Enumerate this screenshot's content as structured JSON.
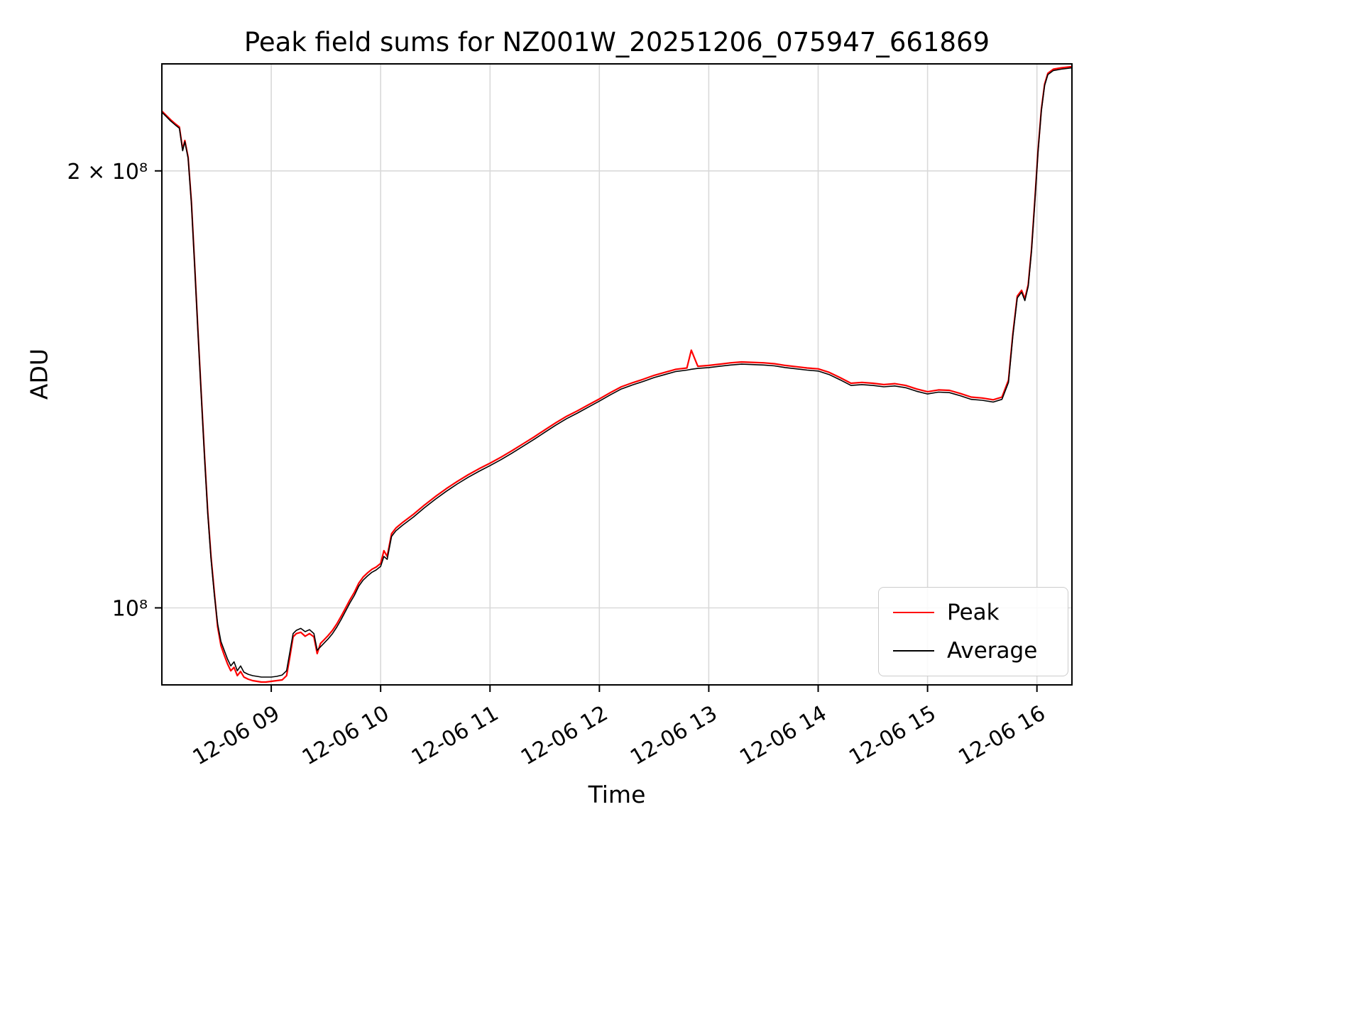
{
  "figure": {
    "background": "#ffffff"
  },
  "chart_data": {
    "type": "line",
    "title": "Peak field sums for NZ001W_20251206_075947_661869",
    "xlabel": "Time",
    "ylabel": "ADU",
    "yscale": "log",
    "grid": true,
    "ylim": [
      88500000.0,
      237000000.0
    ],
    "xlim_hours": [
      8.0,
      16.32
    ],
    "x_unit": "hours on 2025-12-06",
    "legend": {
      "position": "lower right"
    },
    "colors": {
      "grid": "#d9d9d9",
      "axes": "#000000"
    },
    "y_ticks": [
      {
        "value": 200000000.0,
        "label": "2 × 10⁸"
      },
      {
        "value": 100000000.0,
        "label": "10⁸"
      }
    ],
    "x_ticks": [
      {
        "hour": 9,
        "label": "12-06 09"
      },
      {
        "hour": 10,
        "label": "12-06 10"
      },
      {
        "hour": 11,
        "label": "12-06 11"
      },
      {
        "hour": 12,
        "label": "12-06 12"
      },
      {
        "hour": 13,
        "label": "12-06 13"
      },
      {
        "hour": 14,
        "label": "12-06 14"
      },
      {
        "hour": 15,
        "label": "12-06 15"
      },
      {
        "hour": 16,
        "label": "12-06 16"
      }
    ],
    "x": [
      8.0,
      8.04,
      8.08,
      8.12,
      8.16,
      8.19,
      8.21,
      8.24,
      8.27,
      8.3,
      8.33,
      8.36,
      8.39,
      8.42,
      8.45,
      8.48,
      8.51,
      8.54,
      8.57,
      8.6,
      8.63,
      8.66,
      8.69,
      8.72,
      8.75,
      8.79,
      8.83,
      8.87,
      8.91,
      8.95,
      9.0,
      9.05,
      9.1,
      9.14,
      9.17,
      9.2,
      9.23,
      9.27,
      9.31,
      9.35,
      9.39,
      9.42,
      9.45,
      9.48,
      9.52,
      9.56,
      9.6,
      9.64,
      9.68,
      9.72,
      9.76,
      9.8,
      9.84,
      9.88,
      9.92,
      9.96,
      10.0,
      10.03,
      10.06,
      10.1,
      10.14,
      10.2,
      10.3,
      10.4,
      10.5,
      10.6,
      10.7,
      10.8,
      10.9,
      11.0,
      11.1,
      11.2,
      11.3,
      11.4,
      11.5,
      11.6,
      11.7,
      11.8,
      11.9,
      12.0,
      12.1,
      12.2,
      12.3,
      12.4,
      12.5,
      12.6,
      12.7,
      12.8,
      12.84,
      12.9,
      13.0,
      13.1,
      13.2,
      13.3,
      13.4,
      13.5,
      13.6,
      13.7,
      13.8,
      13.9,
      14.0,
      14.1,
      14.2,
      14.3,
      14.4,
      14.5,
      14.6,
      14.7,
      14.8,
      14.9,
      15.0,
      15.1,
      15.2,
      15.3,
      15.4,
      15.5,
      15.6,
      15.68,
      15.74,
      15.78,
      15.82,
      15.86,
      15.89,
      15.92,
      15.95,
      15.98,
      16.01,
      16.04,
      16.07,
      16.1,
      16.15,
      16.22,
      16.32
    ],
    "series": [
      {
        "name": "Peak",
        "color": "#ff0000",
        "line_width": 2.2,
        "values": [
          219900000.0,
          218400000.0,
          216900000.0,
          215600000.0,
          214400000.0,
          206900000.0,
          209900000.0,
          204400000.0,
          190500000.0,
          172400000.0,
          155400000.0,
          140400000.0,
          127400000.0,
          116400000.0,
          108400000.0,
          102400000.0,
          97000000.0,
          94200000.0,
          92800000.0,
          91500000.0,
          90500000.0,
          91000000.0,
          89800000.0,
          90400000.0,
          89600000.0,
          89300000.0,
          89100000.0,
          89000000.0,
          88900000.0,
          88900000.0,
          89000000.0,
          89100000.0,
          89200000.0,
          89800000.0,
          92500000.0,
          95500000.0,
          96000000.0,
          96200000.0,
          95600000.0,
          96000000.0,
          95500000.0,
          93000000.0,
          94500000.0,
          95000000.0,
          95700000.0,
          96500000.0,
          97500000.0,
          98700000.0,
          100000000.0,
          101300000.0,
          102500000.0,
          104000000.0,
          105000000.0,
          105700000.0,
          106300000.0,
          106700000.0,
          107300000.0,
          109500000.0,
          108500000.0,
          112500000.0,
          113500000.0,
          114500000.0,
          116000000.0,
          117700000.0,
          119300000.0,
          120800000.0,
          122200000.0,
          123500000.0,
          124700000.0,
          125800000.0,
          127000000.0,
          128300000.0,
          129700000.0,
          131100000.0,
          132600000.0,
          134100000.0,
          135500000.0,
          136700000.0,
          138000000.0,
          139300000.0,
          140700000.0,
          142000000.0,
          142900000.0,
          143700000.0,
          144600000.0,
          145300000.0,
          146000000.0,
          146300000.0,
          150500000.0,
          146700000.0,
          146900000.0,
          147200000.0,
          147500000.0,
          147700000.0,
          147600000.0,
          147500000.0,
          147300000.0,
          146900000.0,
          146600000.0,
          146300000.0,
          146100000.0,
          145300000.0,
          144100000.0,
          142800000.0,
          143000000.0,
          142800000.0,
          142500000.0,
          142700000.0,
          142300000.0,
          141500000.0,
          140900000.0,
          141300000.0,
          141200000.0,
          140500000.0,
          139700000.0,
          139500000.0,
          139100000.0,
          139700000.0,
          143500000.0,
          154500000.0,
          164000000.0,
          165500000.0,
          163300000.0,
          167000000.0,
          176500000.0,
          190500000.0,
          206500000.0,
          220500000.0,
          229500000.0,
          233500000.0,
          235000000.0,
          235500000.0,
          236000000.0
        ]
      },
      {
        "name": "Average",
        "color": "#000000",
        "line_width": 1.6,
        "values": [
          219500000.0,
          218000000.0,
          216500000.0,
          215200000.0,
          214000000.0,
          206500000.0,
          209500000.0,
          204000000.0,
          190000000.0,
          172000000.0,
          155000000.0,
          140000000.0,
          127000000.0,
          116000000.0,
          108000000.0,
          102000000.0,
          97500000.0,
          94800000.0,
          93500000.0,
          92200000.0,
          91200000.0,
          91800000.0,
          90500000.0,
          91200000.0,
          90300000.0,
          90000000.0,
          89800000.0,
          89700000.0,
          89600000.0,
          89600000.0,
          89600000.0,
          89700000.0,
          89900000.0,
          90500000.0,
          93200000.0,
          96000000.0,
          96500000.0,
          96800000.0,
          96300000.0,
          96600000.0,
          96000000.0,
          93500000.0,
          94000000.0,
          94500000.0,
          95200000.0,
          96000000.0,
          97000000.0,
          98200000.0,
          99500000.0,
          100800000.0,
          102000000.0,
          103500000.0,
          104500000.0,
          105200000.0,
          105800000.0,
          106200000.0,
          106800000.0,
          108500000.0,
          108000000.0,
          112000000.0,
          113000000.0,
          114000000.0,
          115500000.0,
          117200000.0,
          118800000.0,
          120300000.0,
          121700000.0,
          123000000.0,
          124200000.0,
          125300000.0,
          126500000.0,
          127800000.0,
          129200000.0,
          130600000.0,
          132100000.0,
          133600000.0,
          135000000.0,
          136200000.0,
          137500000.0,
          138800000.0,
          140200000.0,
          141500000.0,
          142400000.0,
          143200000.0,
          144100000.0,
          144800000.0,
          145500000.0,
          145800000.0,
          146000000.0,
          146200000.0,
          146400000.0,
          146700000.0,
          147000000.0,
          147200000.0,
          147100000.0,
          147000000.0,
          146800000.0,
          146400000.0,
          146100000.0,
          145800000.0,
          145600000.0,
          144800000.0,
          143600000.0,
          142300000.0,
          142500000.0,
          142300000.0,
          142000000.0,
          142200000.0,
          141800000.0,
          141000000.0,
          140400000.0,
          140800000.0,
          140700000.0,
          140000000.0,
          139200000.0,
          139000000.0,
          138600000.0,
          139200000.0,
          143000000.0,
          154000000.0,
          163500000.0,
          165000000.0,
          162800000.0,
          166500000.0,
          176000000.0,
          190000000.0,
          206000000.0,
          220000000.0,
          229000000.0,
          233000000.0,
          234500000.0,
          235000000.0,
          235500000.0
        ]
      }
    ]
  }
}
